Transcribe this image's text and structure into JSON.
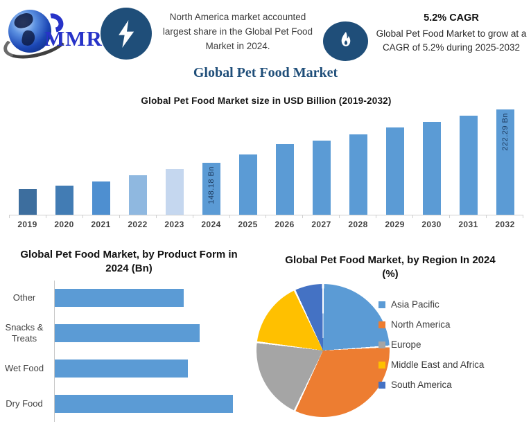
{
  "header": {
    "logo_text": "MMR",
    "highlight": "North America market accounted largest share in the Global Pet Food Market in 2024.",
    "cagr_title": "5.2% CAGR",
    "cagr_text": "Global Pet Food Market to grow at a CAGR of 5.2% during 2025-2032",
    "icon_circle_color": "#1F4E79",
    "icons": [
      "globe-icon",
      "lightning-icon",
      "flame-icon"
    ]
  },
  "page_title": "Global Pet Food Market",
  "accent_colors": {
    "title_blue": "#1F4E79",
    "bar_blue": "#5B9BD5",
    "logo_blue": "#2733C8"
  },
  "chart_data": [
    {
      "type": "bar",
      "title": "Global Pet Food Market size in USD Billion (2019-2032)",
      "categories": [
        "2019",
        "2020",
        "2021",
        "2022",
        "2023",
        "2024",
        "2025",
        "2026",
        "2027",
        "2028",
        "2029",
        "2030",
        "2031",
        "2032"
      ],
      "values": [
        111,
        116,
        122,
        130,
        139,
        148.18,
        159,
        174,
        179,
        188,
        197,
        205,
        214,
        222.29
      ],
      "point_labels": [
        "",
        "",
        "",
        "",
        "",
        "148.18 Bn",
        "",
        "",
        "",
        "",
        "",
        "",
        "",
        "222.29 Bn"
      ],
      "bar_colors": [
        "#3D6E9E",
        "#427CB4",
        "#4E8FD0",
        "#8FB8E0",
        "#C5D7EF",
        "#5B9BD5",
        "#5B9BD5",
        "#5B9BD5",
        "#5B9BD5",
        "#5B9BD5",
        "#5B9BD5",
        "#5B9BD5",
        "#5B9BD5",
        "#5B9BD5"
      ],
      "ylabel": "USD Billion",
      "value_axis": {
        "hidden": true,
        "baseline": 75
      },
      "grid": false,
      "legend": "none"
    },
    {
      "type": "bar",
      "orientation": "horizontal",
      "title": "Global Pet Food Market, by Product Form in 2024 (Bn)",
      "categories": [
        "Other",
        "Snacks & Treats",
        "Wet Food",
        "Dry Food"
      ],
      "values": [
        33,
        37,
        34,
        45.5
      ],
      "color": "#5B9BD5",
      "value_axis": {
        "hidden": true,
        "baseline": 0
      },
      "grid": false,
      "legend": "none"
    },
    {
      "type": "pie",
      "title": "Global Pet Food Market, by Region In 2024 (%)",
      "labels": [
        "Asia Pacific",
        "North America",
        "Europe",
        "Middle East and Africa",
        "South America"
      ],
      "values": [
        24,
        33,
        20,
        16,
        7
      ],
      "colors": [
        "#5B9BD5",
        "#ED7D31",
        "#A5A5A5",
        "#FFC000",
        "#4472C4"
      ],
      "start_angle_deg": 0,
      "legend_position": "right"
    }
  ]
}
